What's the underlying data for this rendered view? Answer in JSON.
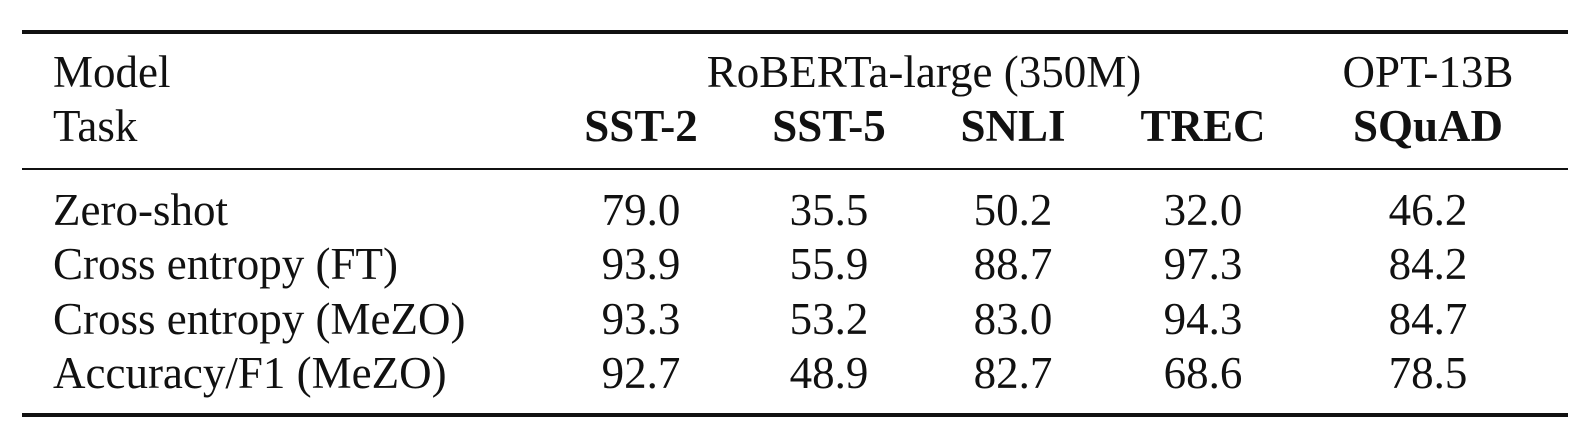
{
  "table": {
    "header": {
      "model_label": "Model",
      "task_label": "Task",
      "group_roberta": "RoBERTa-large (350M)",
      "group_opt": "OPT-13B",
      "tasks": [
        "SST-2",
        "SST-5",
        "SNLI",
        "TREC",
        "SQuAD"
      ]
    },
    "rows": [
      {
        "label": "Zero-shot",
        "values": [
          "79.0",
          "35.5",
          "50.2",
          "32.0",
          "46.2"
        ]
      },
      {
        "label": "Cross entropy (FT)",
        "values": [
          "93.9",
          "55.9",
          "88.7",
          "97.3",
          "84.2"
        ]
      },
      {
        "label": "Cross entropy (MeZO)",
        "values": [
          "93.3",
          "53.2",
          "83.0",
          "94.3",
          "84.7"
        ]
      },
      {
        "label": "Accuracy/F1 (MeZO)",
        "values": [
          "92.7",
          "48.9",
          "82.7",
          "68.6",
          "78.5"
        ]
      }
    ]
  }
}
